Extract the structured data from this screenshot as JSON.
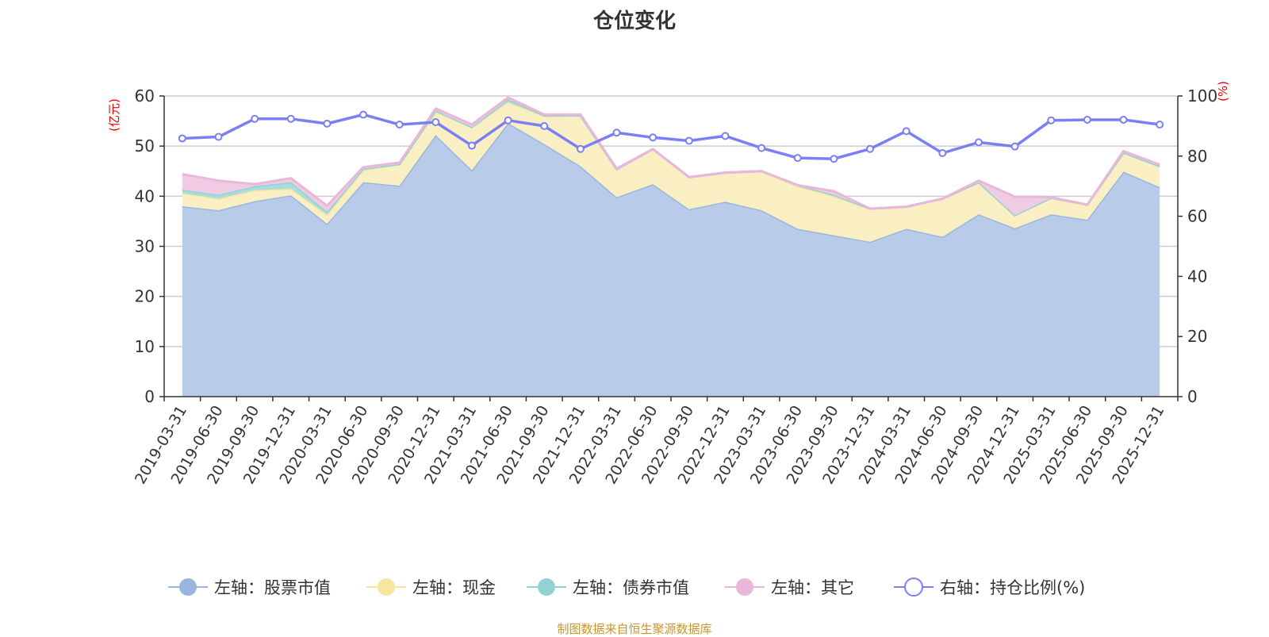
{
  "chart_data": {
    "type": "area",
    "title": "仓位变化",
    "footer": "制图数据来自恒生聚源数据库",
    "left_axis": {
      "unit": "(亿元)",
      "ylim": [
        0,
        60
      ],
      "ticks": [
        0,
        10,
        20,
        30,
        40,
        50,
        60
      ]
    },
    "right_axis": {
      "unit": "(%)",
      "ylim": [
        0,
        100
      ],
      "ticks": [
        0,
        20,
        40,
        60,
        80,
        100
      ]
    },
    "grid": true,
    "legend_position": "bottom",
    "stacked": true,
    "categories": [
      "2019-03-31",
      "2019-06-30",
      "2019-09-30",
      "2019-12-31",
      "2020-03-31",
      "2020-06-30",
      "2020-09-30",
      "2020-12-31",
      "2021-03-31",
      "2021-06-30",
      "2021-09-30",
      "2021-12-31",
      "2022-03-31",
      "2022-06-30",
      "2022-09-30",
      "2022-12-31",
      "2023-03-31",
      "2023-06-30",
      "2023-09-30",
      "2023-12-31",
      "2024-03-31",
      "2024-06-30",
      "2024-09-30",
      "2024-12-31",
      "2025-03-31",
      "2025-06-30",
      "2025-09-30",
      "2025-12-31"
    ],
    "series": [
      {
        "name": "左轴：股票市值",
        "axis": "left",
        "color": "#9ab6e0",
        "fill": "#b8cbe8",
        "values": [
          38.0,
          37.2,
          39.0,
          40.2,
          34.5,
          42.8,
          42.1,
          52.2,
          45.2,
          54.6,
          50.4,
          46.0,
          39.8,
          42.4,
          37.4,
          38.9,
          37.2,
          33.5,
          32.2,
          30.9,
          33.5,
          31.9,
          36.4,
          33.6,
          36.4,
          35.3,
          44.9,
          41.8
        ]
      },
      {
        "name": "左轴：现金",
        "axis": "left",
        "color": "#f7e6a0",
        "fill": "#faefc3",
        "values": [
          2.6,
          2.3,
          2.2,
          1.3,
          1.8,
          2.4,
          4.3,
          4.6,
          8.6,
          4.2,
          5.6,
          10.1,
          5.6,
          7.0,
          6.4,
          5.8,
          7.8,
          8.5,
          7.8,
          6.6,
          4.4,
          7.6,
          6.4,
          2.6,
          3.3,
          3.0,
          3.8,
          4.2
        ]
      },
      {
        "name": "左轴：债券市值",
        "axis": "left",
        "color": "#93d2d2",
        "fill": "#a9dcdc",
        "values": [
          0.7,
          0.8,
          0.8,
          1.3,
          0.6,
          0.3,
          0,
          0.3,
          0,
          0.5,
          0.1,
          0,
          0,
          0,
          0,
          0,
          0,
          0.2,
          0.3,
          0,
          0,
          0,
          0,
          0,
          0,
          0,
          0,
          0
        ]
      },
      {
        "name": "左轴：其它",
        "axis": "left",
        "color": "#e8b7d9",
        "fill": "#efcce3",
        "values": [
          3.1,
          2.8,
          0.4,
          0.8,
          1.2,
          0.3,
          0.3,
          0.4,
          0.5,
          0.4,
          0.2,
          0.2,
          0.1,
          0,
          0,
          0,
          0,
          0,
          0.7,
          0,
          0,
          0,
          0.3,
          3.7,
          0.1,
          0,
          0.3,
          0.3
        ]
      },
      {
        "name": "右轴：持仓比例(%)",
        "axis": "right",
        "color": "#7b7ff5",
        "type": "line",
        "values": [
          85.9,
          86.4,
          92.4,
          92.4,
          90.8,
          93.8,
          90.5,
          91.3,
          83.5,
          91.9,
          90.0,
          82.4,
          87.8,
          86.2,
          85.1,
          86.7,
          82.7,
          79.4,
          79.1,
          82.4,
          88.3,
          81.0,
          84.6,
          83.2,
          91.9,
          92.1,
          92.1,
          90.5
        ]
      }
    ]
  }
}
